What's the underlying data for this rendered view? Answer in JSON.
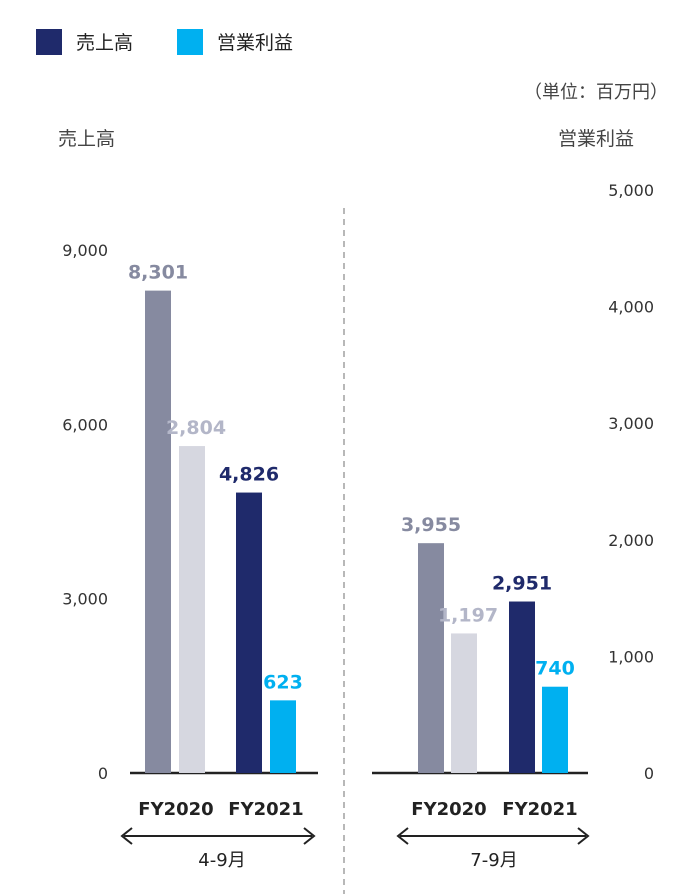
{
  "legend": [
    {
      "label": "売上高",
      "color": "#1f2a6b"
    },
    {
      "label": "営業利益",
      "color": "#00b0f0"
    }
  ],
  "unit_label": "（単位：百万円）",
  "left_axis_title": "売上高",
  "right_axis_title": "営業利益",
  "chart_data": {
    "type": "bar",
    "left_axis": {
      "label": "売上高",
      "range": [
        0,
        9000
      ],
      "ticks": [
        "0",
        "3,000",
        "6,000",
        "9,000"
      ]
    },
    "right_axis": {
      "label": "営業利益",
      "range": [
        0,
        5000
      ],
      "ticks": [
        "0",
        "1,000",
        "2,000",
        "3,000",
        "4,000",
        "5,000"
      ]
    },
    "groups": [
      {
        "period": "4-9月",
        "categories": [
          "FY2020",
          "FY2021"
        ],
        "bars": [
          {
            "fiscal_year": "FY2020",
            "series": "売上高",
            "axis": "left",
            "value": 8301,
            "label": "8,301",
            "color": "#868aa0",
            "label_color": "#868aa0"
          },
          {
            "fiscal_year": "FY2020",
            "series": "営業利益",
            "axis": "right",
            "value": 2804,
            "label": "2,804",
            "color": "#d6d7e0",
            "label_color": "#b3b6c8"
          },
          {
            "fiscal_year": "FY2021",
            "series": "売上高",
            "axis": "left",
            "value": 4826,
            "label": "4,826",
            "color": "#1f2a6b",
            "label_color": "#1f2a6b"
          },
          {
            "fiscal_year": "FY2021",
            "series": "営業利益",
            "axis": "right",
            "value": 623,
            "label": "623",
            "color": "#00b0f0",
            "label_color": "#00b0f0"
          }
        ]
      },
      {
        "period": "7-9月",
        "categories": [
          "FY2020",
          "FY2021"
        ],
        "bars": [
          {
            "fiscal_year": "FY2020",
            "series": "売上高",
            "axis": "left",
            "value": 3955,
            "label": "3,955",
            "color": "#868aa0",
            "label_color": "#868aa0"
          },
          {
            "fiscal_year": "FY2020",
            "series": "営業利益",
            "axis": "right",
            "value": 1197,
            "label": "1,197",
            "color": "#d6d7e0",
            "label_color": "#b3b6c8"
          },
          {
            "fiscal_year": "FY2021",
            "series": "売上高",
            "axis": "left",
            "value": 2951,
            "label": "2,951",
            "color": "#1f2a6b",
            "label_color": "#1f2a6b"
          },
          {
            "fiscal_year": "FY2021",
            "series": "営業利益",
            "axis": "right",
            "value": 740,
            "label": "740",
            "color": "#00b0f0",
            "label_color": "#00b0f0"
          }
        ]
      }
    ]
  }
}
